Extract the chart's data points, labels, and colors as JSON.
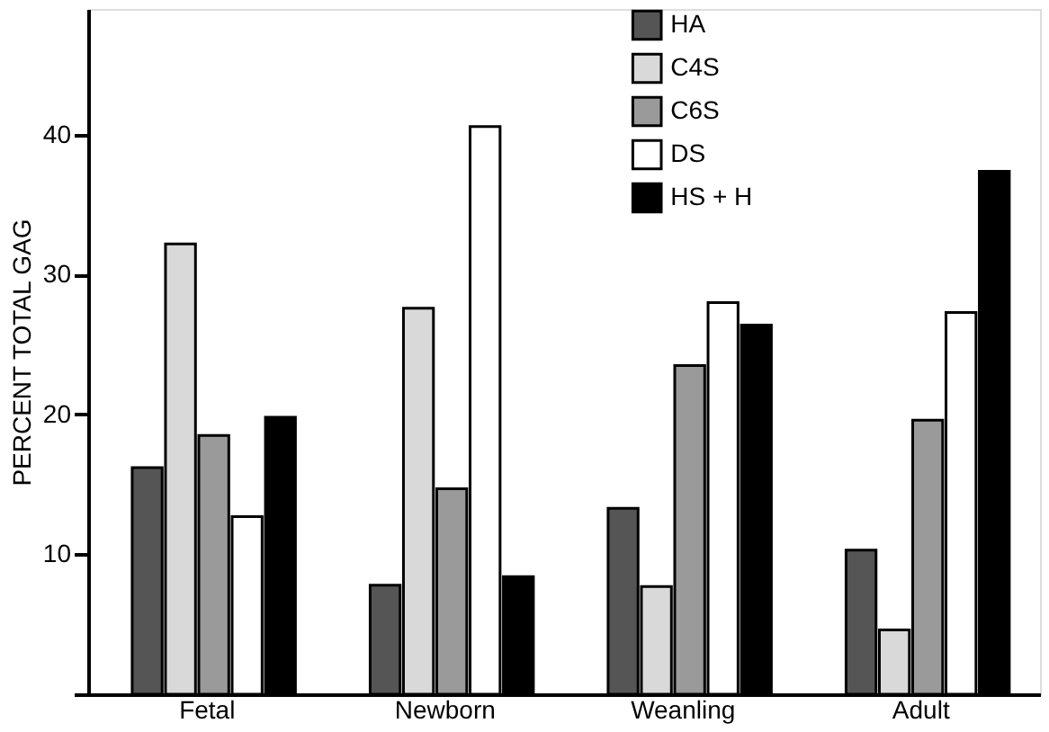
{
  "chart_data": {
    "type": "bar",
    "ylabel": "PERCENT TOTAL GAG",
    "categories": [
      "Fetal",
      "Newborn",
      "Weanling",
      "Adult"
    ],
    "series": [
      {
        "name": "HA",
        "color": "#555555",
        "values": [
          16.2,
          7.8,
          13.3,
          10.3
        ]
      },
      {
        "name": "C4S",
        "color": "#d9d9d9",
        "values": [
          32.2,
          27.6,
          7.7,
          4.6
        ]
      },
      {
        "name": "C6S",
        "color": "#9a9a9a",
        "values": [
          18.5,
          14.7,
          23.5,
          19.6
        ]
      },
      {
        "name": "DS",
        "color": "#ffffff",
        "values": [
          12.7,
          40.6,
          28.0,
          27.3
        ]
      },
      {
        "name": "HS + H",
        "color": "#000000",
        "values": [
          19.8,
          8.4,
          26.4,
          37.4
        ]
      }
    ],
    "ylim": [
      0,
      49
    ],
    "yticks": [
      {
        "value": 0,
        "label": null
      },
      10,
      20,
      30,
      40
    ],
    "grid": false,
    "legend": "top right"
  }
}
